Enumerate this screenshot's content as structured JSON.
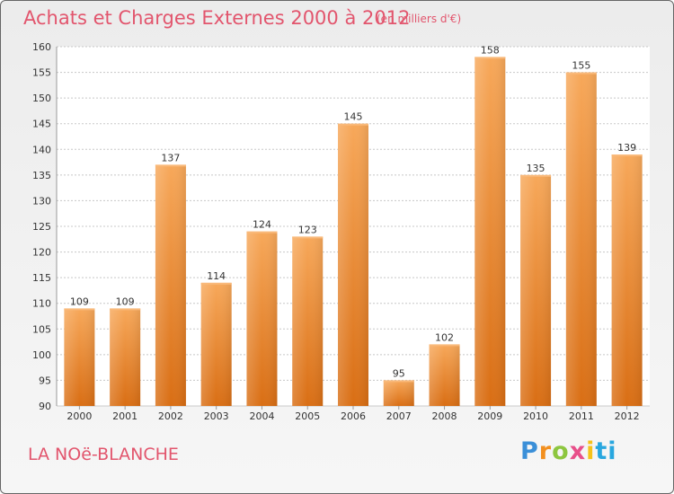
{
  "header": {
    "title": "Achats et Charges Externes 2000 à 2012",
    "subtitle": "(en milliers d'€)"
  },
  "footer": {
    "place": "LA NOë-BLANCHE",
    "logo": "Proxiti"
  },
  "colors": {
    "bar_top": "#f7a85a",
    "bar_bottom": "#d96e14",
    "title": "#e2556d"
  },
  "chart_data": {
    "type": "bar",
    "title": "Achats et Charges Externes 2000 à 2012",
    "subtitle": "(en milliers d'€)",
    "categories": [
      "2000",
      "2001",
      "2002",
      "2003",
      "2004",
      "2005",
      "2006",
      "2007",
      "2008",
      "2009",
      "2010",
      "2011",
      "2012"
    ],
    "values": [
      109,
      109,
      137,
      114,
      124,
      123,
      145,
      95,
      102,
      158,
      135,
      155,
      139
    ],
    "ylim": [
      90,
      160
    ],
    "yticks": [
      90,
      95,
      100,
      105,
      110,
      115,
      120,
      125,
      130,
      135,
      140,
      145,
      150,
      155,
      160
    ],
    "grid": true,
    "legend": "none"
  }
}
